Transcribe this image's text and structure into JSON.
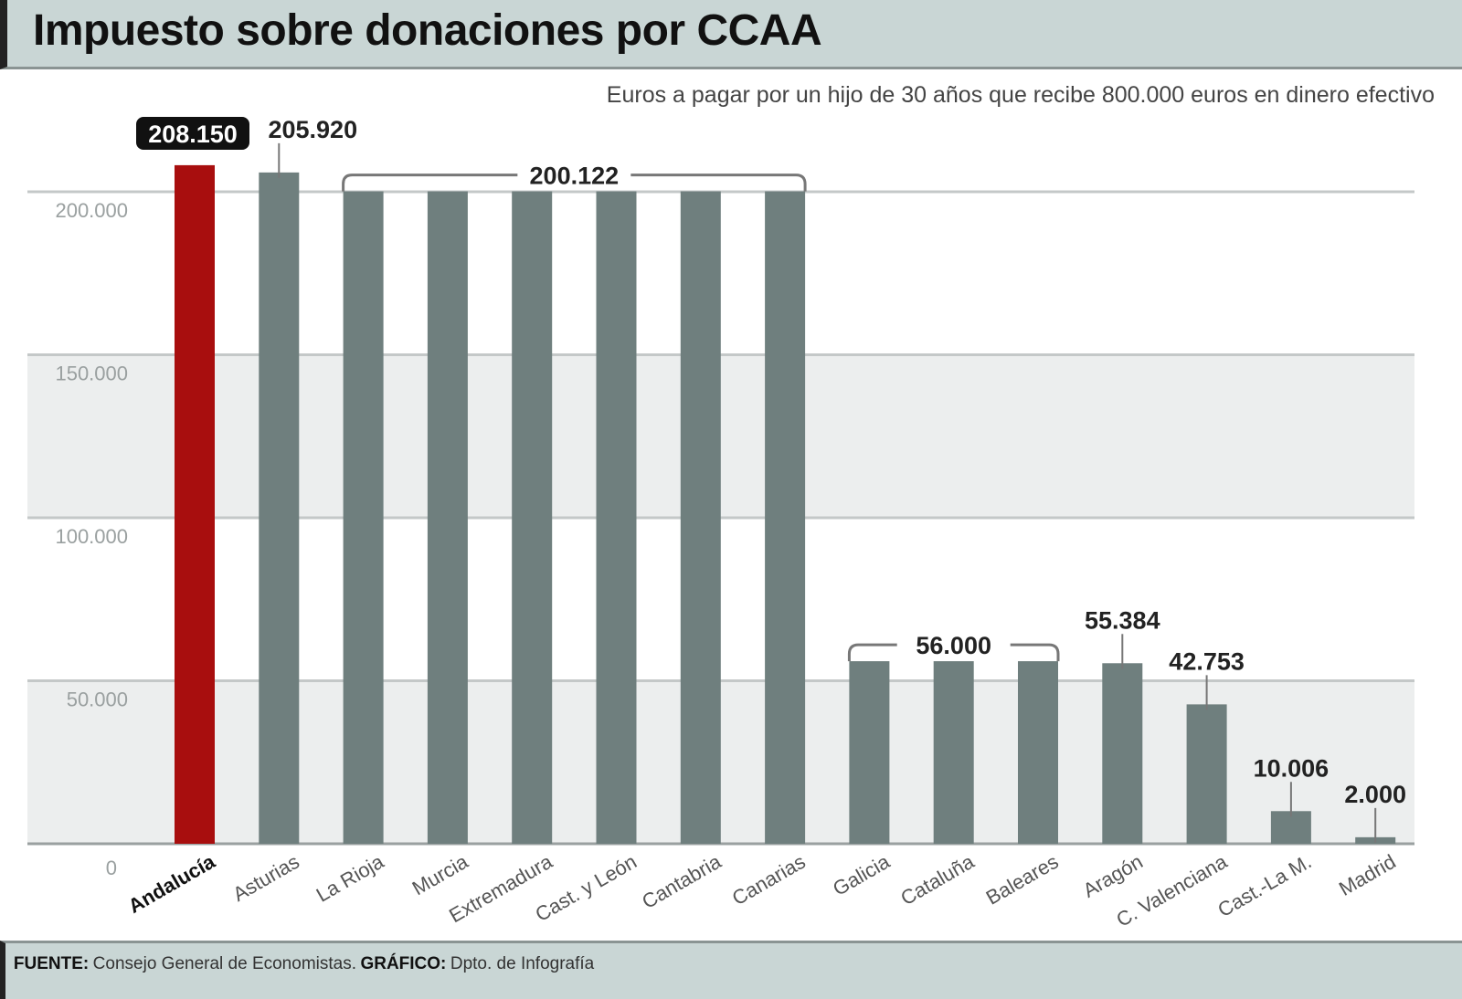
{
  "chart_data": {
    "type": "bar",
    "title": "Impuesto sobre donaciones por CCAA",
    "subtitle": "Euros a pagar por un hijo de 30 años que recibe 800.000 euros en dinero efectivo",
    "categories": [
      "Andalucía",
      "Asturias",
      "La Rioja",
      "Murcia",
      "Extremadura",
      "Cast. y León",
      "Cantabria",
      "Canarias",
      "Galicia",
      "Cataluña",
      "Baleares",
      "Aragón",
      "C. Valenciana",
      "Cast.-La M.",
      "Madrid"
    ],
    "values": [
      208150,
      205920,
      200122,
      200122,
      200122,
      200122,
      200122,
      200122,
      56000,
      56000,
      56000,
      55384,
      42753,
      10006,
      2000
    ],
    "data_labels": [
      {
        "text": "208.150",
        "from": 0,
        "to": 0,
        "highlight": true
      },
      {
        "text": "205.920",
        "from": 1,
        "to": 1
      },
      {
        "text": "200.122",
        "from": 2,
        "to": 7,
        "bracket": true
      },
      {
        "text": "56.000",
        "from": 8,
        "to": 10,
        "bracket": true
      },
      {
        "text": "55.384",
        "from": 11,
        "to": 11
      },
      {
        "text": "42.753",
        "from": 12,
        "to": 12
      },
      {
        "text": "10.006",
        "from": 13,
        "to": 13
      },
      {
        "text": "2.000",
        "from": 14,
        "to": 14
      }
    ],
    "y_ticks": [
      0,
      50000,
      100000,
      150000,
      200000
    ],
    "y_tick_labels": [
      "0",
      "50.000",
      "100.000",
      "150.000",
      "200.000"
    ],
    "ylim": [
      0,
      210000
    ],
    "grid": true,
    "colors": {
      "highlight": "#a80e0e",
      "bar": "#6f7f7e",
      "band": "#eceeee",
      "header": "#c9d6d5"
    }
  },
  "footer": {
    "source_label": "FUENTE:",
    "source_text": "Consejo General de Economistas.",
    "graphic_label": "GRÁFICO:",
    "graphic_text": "Dpto. de Infografía"
  }
}
